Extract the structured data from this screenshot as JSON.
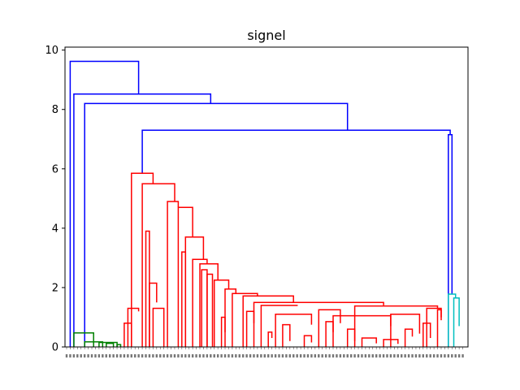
{
  "chart_data": {
    "type": "dendrogram",
    "title": "signel",
    "xlabel": "",
    "ylabel": "",
    "ylim": [
      0,
      10.1
    ],
    "yticks": [
      0,
      2,
      4,
      6,
      8,
      10
    ],
    "grid": false,
    "legend": "none",
    "leaf_count": 110,
    "colors": {
      "root": "#0000ff",
      "red": "#ff0000",
      "green": "#008000",
      "cyan": "#00bfbf",
      "axis": "#000000"
    },
    "links": [
      {
        "color": "#0000ff",
        "x": [
          1.0,
          1.0,
          20.0,
          20.0
        ],
        "y": [
          0.0,
          9.62,
          9.62,
          8.52
        ]
      },
      {
        "color": "#0000ff",
        "x": [
          2.0,
          2.0,
          40.0,
          40.0
        ],
        "y": [
          0.0,
          8.52,
          8.52,
          8.2
        ]
      },
      {
        "color": "#0000ff",
        "x": [
          5.0,
          5.0,
          78.0,
          78.0
        ],
        "y": [
          0.0,
          8.2,
          8.2,
          7.3
        ]
      },
      {
        "color": "#0000ff",
        "x": [
          21.0,
          21.0,
          106.5,
          106.5
        ],
        "y": [
          5.85,
          7.3,
          7.3,
          7.15
        ]
      },
      {
        "color": "#0000ff",
        "x": [
          106.0,
          106.0,
          107.0,
          107.0
        ],
        "y": [
          0.0,
          7.15,
          7.15,
          1.78
        ]
      },
      {
        "color": "#008000",
        "x": [
          2.0,
          2.0,
          7.5,
          7.5
        ],
        "y": [
          0.0,
          0.47,
          0.47,
          0.0
        ]
      },
      {
        "color": "#008000",
        "x": [
          5.0,
          5.0,
          10.0,
          10.0
        ],
        "y": [
          0.0,
          0.17,
          0.17,
          0.0
        ]
      },
      {
        "color": "#008000",
        "x": [
          9.0,
          9.0,
          14.0,
          14.0
        ],
        "y": [
          0.0,
          0.15,
          0.15,
          0.0
        ]
      },
      {
        "color": "#008000",
        "x": [
          11.0,
          11.0,
          13.0,
          13.0
        ],
        "y": [
          0.0,
          0.12,
          0.12,
          0.0
        ]
      },
      {
        "color": "#008000",
        "x": [
          14.0,
          14.0,
          15.0,
          15.0
        ],
        "y": [
          0.0,
          0.08,
          0.08,
          0.0
        ]
      },
      {
        "color": "#00bfbf",
        "x": [
          106.0,
          106.0,
          108.0,
          108.0
        ],
        "y": [
          0.0,
          1.78,
          1.78,
          1.65
        ]
      },
      {
        "color": "#00bfbf",
        "x": [
          107.5,
          107.5,
          109.0,
          109.0
        ],
        "y": [
          0.0,
          1.65,
          1.65,
          0.7
        ]
      },
      {
        "color": "#ff0000",
        "x": [
          18.0,
          18.0,
          24.0,
          24.0
        ],
        "y": [
          0.0,
          5.85,
          5.85,
          5.5
        ]
      },
      {
        "color": "#ff0000",
        "x": [
          21.0,
          21.0,
          30.0,
          30.0
        ],
        "y": [
          0.0,
          5.5,
          5.5,
          4.9
        ]
      },
      {
        "color": "#ff0000",
        "x": [
          28.0,
          28.0,
          31.0,
          31.0
        ],
        "y": [
          0.0,
          4.9,
          4.9,
          4.7
        ]
      },
      {
        "color": "#ff0000",
        "x": [
          31.0,
          31.0,
          35.0,
          35.0
        ],
        "y": [
          0.0,
          4.7,
          4.7,
          3.7
        ]
      },
      {
        "color": "#ff0000",
        "x": [
          33.0,
          33.0,
          38.0,
          38.0
        ],
        "y": [
          0.0,
          3.7,
          3.7,
          2.95
        ]
      },
      {
        "color": "#ff0000",
        "x": [
          35.0,
          35.0,
          39.0,
          39.0
        ],
        "y": [
          0.0,
          2.95,
          2.95,
          2.8
        ]
      },
      {
        "color": "#ff0000",
        "x": [
          37.0,
          37.0,
          42.0,
          42.0
        ],
        "y": [
          0.0,
          2.8,
          2.8,
          2.25
        ]
      },
      {
        "color": "#ff0000",
        "x": [
          41.0,
          41.0,
          45.0,
          45.0
        ],
        "y": [
          0.0,
          2.25,
          2.25,
          1.95
        ]
      },
      {
        "color": "#ff0000",
        "x": [
          44.0,
          44.0,
          47.0,
          47.0
        ],
        "y": [
          0.0,
          1.95,
          1.95,
          1.8
        ]
      },
      {
        "color": "#ff0000",
        "x": [
          46.0,
          46.0,
          53.0,
          53.0
        ],
        "y": [
          0.0,
          1.8,
          1.8,
          1.72
        ]
      },
      {
        "color": "#ff0000",
        "x": [
          49.0,
          49.0,
          63.0,
          63.0
        ],
        "y": [
          0.0,
          1.72,
          1.72,
          1.5
        ]
      },
      {
        "color": "#ff0000",
        "x": [
          52.0,
          52.0,
          88.0,
          88.0
        ],
        "y": [
          0.0,
          1.5,
          1.5,
          1.4
        ]
      },
      {
        "color": "#ff0000",
        "x": [
          54.0,
          54.0,
          64.0,
          64.0
        ],
        "y": [
          0.0,
          1.4,
          1.4,
          1.38
        ]
      },
      {
        "color": "#ff0000",
        "x": [
          80.0,
          80.0,
          103.0,
          103.0
        ],
        "y": [
          0.0,
          1.38,
          1.38,
          1.3
        ]
      },
      {
        "color": "#ff0000",
        "x": [
          58.0,
          58.0,
          68.0,
          68.0
        ],
        "y": [
          0.0,
          1.1,
          1.1,
          0.75
        ]
      },
      {
        "color": "#ff0000",
        "x": [
          70.0,
          70.0,
          76.0,
          76.0
        ],
        "y": [
          0.0,
          1.25,
          1.25,
          0.8
        ]
      },
      {
        "color": "#ff0000",
        "x": [
          74.0,
          74.0,
          90.0,
          90.0
        ],
        "y": [
          0.0,
          1.05,
          1.05,
          0.7
        ]
      },
      {
        "color": "#ff0000",
        "x": [
          90.0,
          90.0,
          98.0,
          98.0
        ],
        "y": [
          0.0,
          1.1,
          1.1,
          0.45
        ]
      },
      {
        "color": "#ff0000",
        "x": [
          100.0,
          100.0,
          104.0,
          104.0
        ],
        "y": [
          0.0,
          1.3,
          1.3,
          1.0
        ]
      },
      {
        "color": "#ff0000",
        "x": [
          16.0,
          16.0,
          18.0,
          18.0
        ],
        "y": [
          0.0,
          0.8,
          0.8,
          0.0
        ]
      },
      {
        "color": "#ff0000",
        "x": [
          17.0,
          17.0,
          20.0,
          20.0
        ],
        "y": [
          0.0,
          1.3,
          1.3,
          1.2
        ]
      },
      {
        "color": "#ff0000",
        "x": [
          22.0,
          22.0,
          23.0,
          23.0
        ],
        "y": [
          0.0,
          3.9,
          3.9,
          0.0
        ]
      },
      {
        "color": "#ff0000",
        "x": [
          23.0,
          23.0,
          25.0,
          25.0
        ],
        "y": [
          0.0,
          2.15,
          2.15,
          1.5
        ]
      },
      {
        "color": "#ff0000",
        "x": [
          24.0,
          24.0,
          27.0,
          27.0
        ],
        "y": [
          0.0,
          1.3,
          1.3,
          0.0
        ]
      },
      {
        "color": "#ff0000",
        "x": [
          32.0,
          32.0,
          33.0,
          33.0
        ],
        "y": [
          0.0,
          3.2,
          3.2,
          0.0
        ]
      },
      {
        "color": "#ff0000",
        "x": [
          37.5,
          37.5,
          39.0,
          39.0
        ],
        "y": [
          0.0,
          2.6,
          2.6,
          0.0
        ]
      },
      {
        "color": "#ff0000",
        "x": [
          39.0,
          39.0,
          40.5,
          40.5
        ],
        "y": [
          0.0,
          2.45,
          2.45,
          0.0
        ]
      },
      {
        "color": "#ff0000",
        "x": [
          43.0,
          43.0,
          44.0,
          44.0
        ],
        "y": [
          0.0,
          1.0,
          1.0,
          0.5
        ]
      },
      {
        "color": "#ff0000",
        "x": [
          50.0,
          50.0,
          52.0,
          52.0
        ],
        "y": [
          0.0,
          1.2,
          1.2,
          0.8
        ]
      },
      {
        "color": "#ff0000",
        "x": [
          56.0,
          56.0,
          57.0,
          57.0
        ],
        "y": [
          0.0,
          0.5,
          0.5,
          0.3
        ]
      },
      {
        "color": "#ff0000",
        "x": [
          60.0,
          60.0,
          62.0,
          62.0
        ],
        "y": [
          0.0,
          0.75,
          0.75,
          0.2
        ]
      },
      {
        "color": "#ff0000",
        "x": [
          66.0,
          66.0,
          68.0,
          68.0
        ],
        "y": [
          0.0,
          0.38,
          0.38,
          0.15
        ]
      },
      {
        "color": "#ff0000",
        "x": [
          72.0,
          72.0,
          74.0,
          74.0
        ],
        "y": [
          0.0,
          0.85,
          0.85,
          0.5
        ]
      },
      {
        "color": "#ff0000",
        "x": [
          78.0,
          78.0,
          80.0,
          80.0
        ],
        "y": [
          0.0,
          0.6,
          0.6,
          0.2
        ]
      },
      {
        "color": "#ff0000",
        "x": [
          82.0,
          82.0,
          86.0,
          86.0
        ],
        "y": [
          0.0,
          0.3,
          0.3,
          0.12
        ]
      },
      {
        "color": "#ff0000",
        "x": [
          88.0,
          88.0,
          92.0,
          92.0
        ],
        "y": [
          0.0,
          0.25,
          0.25,
          0.1
        ]
      },
      {
        "color": "#ff0000",
        "x": [
          94.0,
          94.0,
          96.0,
          96.0
        ],
        "y": [
          0.0,
          0.6,
          0.6,
          0.35
        ]
      },
      {
        "color": "#ff0000",
        "x": [
          99.0,
          99.0,
          101.0,
          101.0
        ],
        "y": [
          0.0,
          0.8,
          0.8,
          0.3
        ]
      },
      {
        "color": "#ff0000",
        "x": [
          103.0,
          103.0,
          104.0,
          104.0
        ],
        "y": [
          0.0,
          1.25,
          1.25,
          0.9
        ]
      }
    ]
  }
}
